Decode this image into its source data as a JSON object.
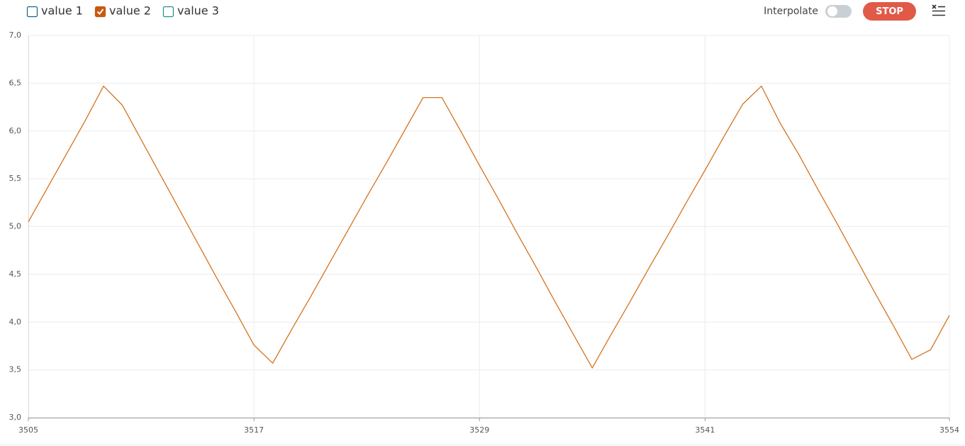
{
  "chart_data": {
    "type": "line",
    "legend": [
      {
        "name": "value 1",
        "color": "#1b5e85",
        "checked": false
      },
      {
        "name": "value 2",
        "color": "#c9590f",
        "checked": true
      },
      {
        "name": "value 3",
        "color": "#1f8f86",
        "checked": false
      }
    ],
    "x": [
      3505,
      3506,
      3507,
      3508,
      3509,
      3510,
      3511,
      3512,
      3513,
      3514,
      3515,
      3516,
      3517,
      3518,
      3519,
      3520,
      3521,
      3522,
      3523,
      3524,
      3525,
      3526,
      3527,
      3528,
      3529,
      3530,
      3531,
      3532,
      3533,
      3534,
      3535,
      3536,
      3537,
      3538,
      3539,
      3540,
      3541,
      3542,
      3543,
      3544,
      3545,
      3546,
      3547,
      3548,
      3549,
      3550,
      3551,
      3552,
      3553,
      3554
    ],
    "series": [
      {
        "color": "#d4731f",
        "values": [
          5.05,
          5.4,
          5.75,
          6.1,
          6.47,
          6.27,
          5.91,
          5.55,
          5.19,
          4.83,
          4.47,
          4.12,
          3.76,
          3.57,
          3.92,
          4.26,
          4.61,
          4.96,
          5.31,
          5.65,
          6.0,
          6.35,
          6.35,
          6.0,
          5.64,
          5.29,
          4.93,
          4.58,
          4.22,
          3.87,
          3.52,
          3.87,
          4.21,
          4.56,
          4.9,
          5.25,
          5.59,
          5.94,
          6.28,
          6.47,
          6.08,
          5.75,
          5.39,
          5.04,
          4.68,
          4.32,
          3.97,
          3.61,
          3.71,
          4.07
        ]
      }
    ],
    "xlim": [
      3505,
      3554
    ],
    "xticks": [
      3505,
      3517,
      3529,
      3541,
      3554
    ],
    "ylim": [
      3,
      7
    ],
    "yticks": [
      {
        "value": 3,
        "label": "3,0"
      },
      {
        "value": 3.5,
        "label": "3,5"
      },
      {
        "value": 4,
        "label": "4,0"
      },
      {
        "value": 4.5,
        "label": "4,5"
      },
      {
        "value": 5,
        "label": "5,0"
      },
      {
        "value": 5.5,
        "label": "5,5"
      },
      {
        "value": 6,
        "label": "6,0"
      },
      {
        "value": 6.5,
        "label": "6,5"
      },
      {
        "value": 7,
        "label": "7,0"
      }
    ],
    "grid": true
  },
  "toolbar": {
    "interpolate_label": "Interpolate",
    "interpolate": false,
    "stop_label": "STOP"
  }
}
